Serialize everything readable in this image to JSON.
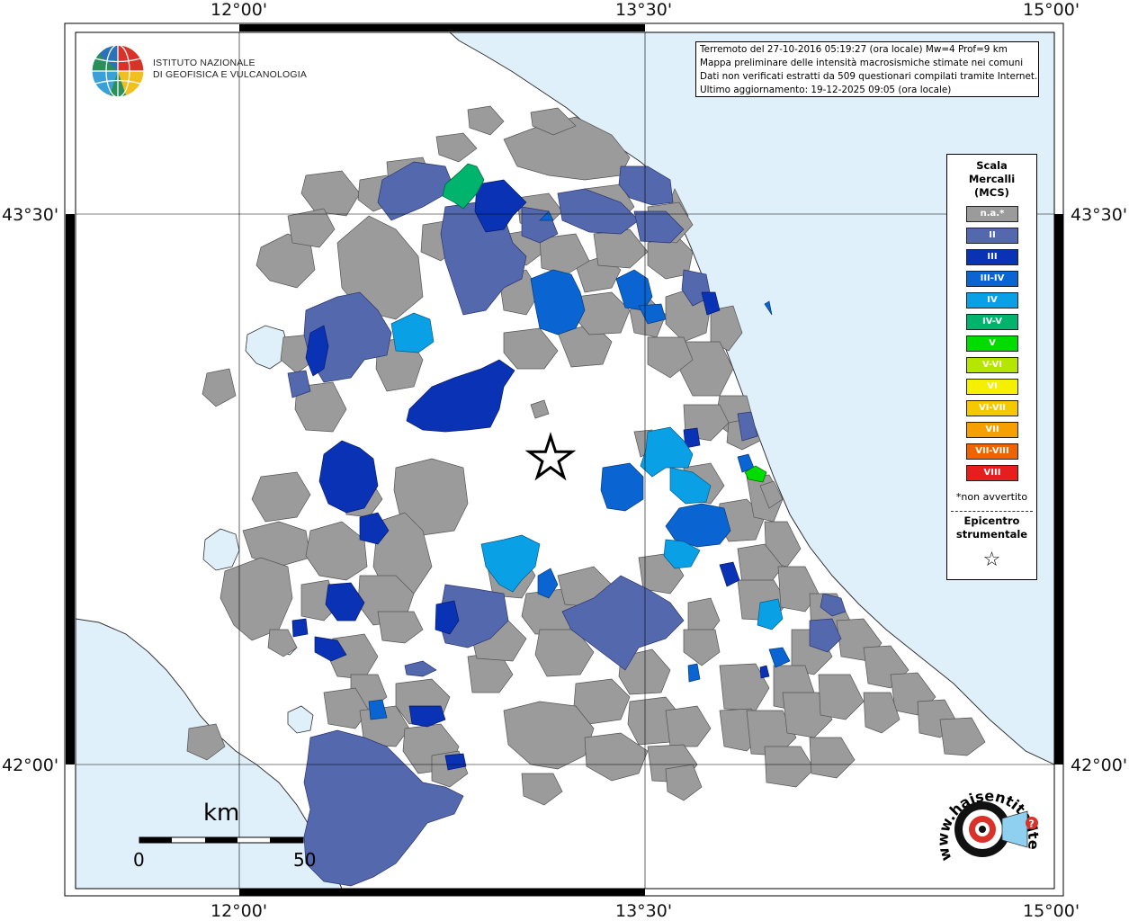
{
  "coordinates": {
    "top": [
      "12°00'",
      "13°30'",
      "15°00'"
    ],
    "bottom": [
      "12°00'",
      "13°30'",
      "15°00'"
    ],
    "left": [
      "43°30'",
      "42°00'"
    ],
    "right": [
      "43°30'",
      "42°00'"
    ]
  },
  "info": {
    "line1": "Terremoto del 27-10-2016 05:19:27 (ora locale) Mw=4 Prof=9 km",
    "line2": "Mappa preliminare delle intensità macrosismiche stimate nei comuni",
    "line3": "Dati non verificati estratti da 509 questionari compilati tramite Internet.",
    "line4": "Ultimo aggiornamento: 19-12-2025 09:05 (ora locale)"
  },
  "logo": {
    "line1": "ISTITUTO NAZIONALE",
    "line2": "DI GEOFISICA E VULCANOLOGIA"
  },
  "legend": {
    "title1": "Scala",
    "title2": "Mercalli",
    "title3": "(MCS)",
    "items": [
      {
        "label": "n.a.*",
        "color": "#9b9b9b"
      },
      {
        "label": "II",
        "color": "#5468ad"
      },
      {
        "label": "III",
        "color": "#0a32b4"
      },
      {
        "label": "III-IV",
        "color": "#0a64d2"
      },
      {
        "label": "IV",
        "color": "#0aa0e6"
      },
      {
        "label": "IV-V",
        "color": "#00b46e"
      },
      {
        "label": "V",
        "color": "#00dc00"
      },
      {
        "label": "V-VI",
        "color": "#b4e600"
      },
      {
        "label": "VI",
        "color": "#f5f000"
      },
      {
        "label": "VI-VII",
        "color": "#f5c800"
      },
      {
        "label": "VII",
        "color": "#f5a000"
      },
      {
        "label": "VII-VIII",
        "color": "#f06400"
      },
      {
        "label": "VIII",
        "color": "#e61e1e"
      }
    ],
    "note": "*non avvertito",
    "epi1": "Epicentro",
    "epi2": "strumentale",
    "epi_symbol": "☆"
  },
  "scale": {
    "unit": "km",
    "start": "0",
    "end": "50"
  },
  "hst_logo": {
    "text": "www.haisentitoilterremoto.it",
    "question": "?"
  },
  "colors": {
    "sea": "#dff0fa",
    "land": "#ffffff",
    "grid": "#000000"
  }
}
